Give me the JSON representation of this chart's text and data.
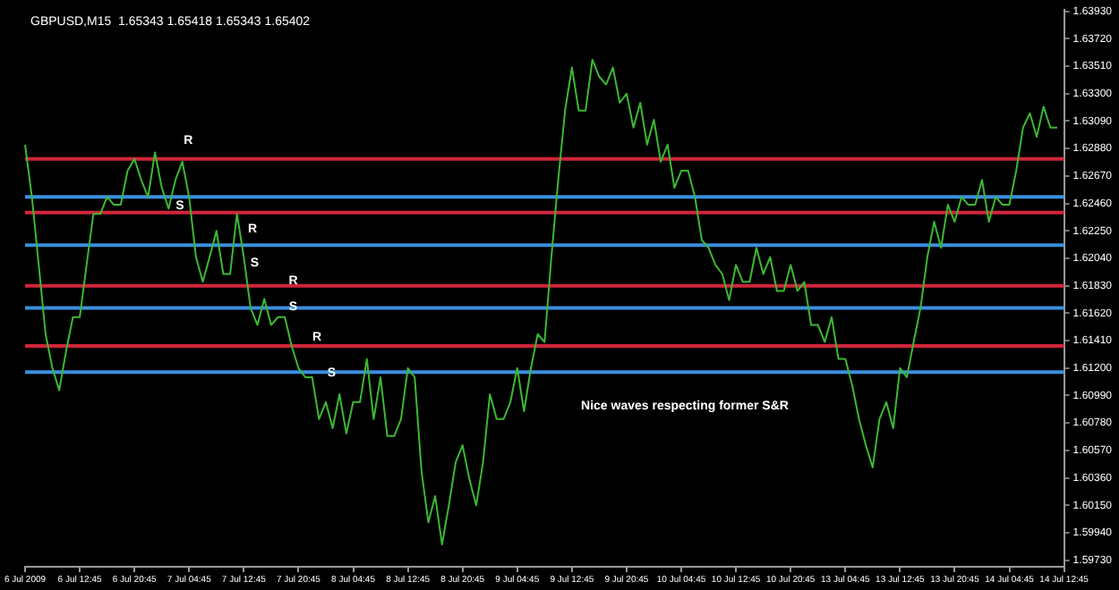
{
  "chart_data": {
    "type": "line",
    "title": "GBPUSD,M15  1.65343 1.65418 1.65343 1.65402",
    "grid": false,
    "legend": false,
    "marker": "none",
    "categories": [
      "6 Jul 2009",
      null,
      null,
      null,
      null,
      null,
      null,
      null,
      "6 Jul 12:45",
      null,
      null,
      null,
      null,
      null,
      null,
      null,
      "6 Jul 20:45",
      null,
      null,
      null,
      null,
      null,
      null,
      null,
      "7 Jul 04:45",
      null,
      null,
      null,
      null,
      null,
      null,
      null,
      "7 Jul 12:45",
      null,
      null,
      null,
      null,
      null,
      null,
      null,
      "7 Jul 20:45",
      null,
      null,
      null,
      null,
      null,
      null,
      null,
      "8 Jul 04:45",
      null,
      null,
      null,
      null,
      null,
      null,
      null,
      "8 Jul 12:45",
      null,
      null,
      null,
      null,
      null,
      null,
      null,
      "8 Jul 20:45",
      null,
      null,
      null,
      null,
      null,
      null,
      null,
      "9 Jul 04:45",
      null,
      null,
      null,
      null,
      null,
      null,
      null,
      "9 Jul 12:45",
      null,
      null,
      null,
      null,
      null,
      null,
      null,
      "9 Jul 20:45",
      null,
      null,
      null,
      null,
      null,
      null,
      null,
      "10 Jul 04:45",
      null,
      null,
      null,
      null,
      null,
      null,
      null,
      "10 Jul 12:45",
      null,
      null,
      null,
      null,
      null,
      null,
      null,
      "10 Jul 20:45",
      null,
      null,
      null,
      null,
      null,
      null,
      null,
      "13 Jul 04:45",
      null,
      null,
      null,
      null,
      null,
      null,
      null,
      "13 Jul 12:45",
      null,
      null,
      null,
      null,
      null,
      null,
      null,
      "13 Jul 20:45",
      null,
      null,
      null,
      null,
      null,
      null,
      null,
      "14 Jul 04:45",
      null,
      null,
      null,
      null,
      null,
      null,
      null,
      "14 Jul 12:45"
    ],
    "series": [
      {
        "color": "#3cb832",
        "values": [
          1.6291,
          1.6251,
          1.6199,
          1.6146,
          1.612,
          1.6103,
          1.6133,
          1.6159,
          1.6159,
          1.6199,
          1.6238,
          1.6238,
          1.6251,
          1.6245,
          1.6245,
          1.6271,
          1.628,
          1.6264,
          1.6251,
          1.6285,
          1.6258,
          1.6242,
          1.6264,
          1.6278,
          1.6251,
          1.6205,
          1.6186,
          1.6205,
          1.6225,
          1.6192,
          1.6192,
          1.6238,
          1.6205,
          1.6166,
          1.6153,
          1.6173,
          1.6153,
          1.6159,
          1.6159,
          1.6137,
          1.612,
          1.6113,
          1.6113,
          1.6081,
          1.6094,
          1.6074,
          1.61,
          1.607,
          1.6094,
          1.6094,
          1.6127,
          1.6081,
          1.6113,
          1.6068,
          1.6068,
          1.6081,
          1.612,
          1.6113,
          1.6041,
          1.6002,
          1.6022,
          1.5985,
          1.6015,
          1.6048,
          1.6061,
          1.6035,
          1.6015,
          1.6048,
          1.61,
          1.6081,
          1.6081,
          1.6094,
          1.612,
          1.6087,
          1.612,
          1.6146,
          1.614,
          1.6205,
          1.6264,
          1.6317,
          1.635,
          1.6317,
          1.6317,
          1.6356,
          1.6343,
          1.6337,
          1.635,
          1.6323,
          1.633,
          1.6304,
          1.6323,
          1.6291,
          1.631,
          1.6278,
          1.6291,
          1.6258,
          1.6271,
          1.6271,
          1.6251,
          1.6218,
          1.6212,
          1.6199,
          1.6192,
          1.6172,
          1.6199,
          1.6186,
          1.6186,
          1.6212,
          1.6192,
          1.6205,
          1.6179,
          1.6179,
          1.6199,
          1.6179,
          1.6186,
          1.6153,
          1.6153,
          1.614,
          1.6159,
          1.6127,
          1.6127,
          1.6107,
          1.6081,
          1.6061,
          1.6044,
          1.6081,
          1.6094,
          1.6074,
          1.612,
          1.6113,
          1.614,
          1.6166,
          1.6205,
          1.6232,
          1.6212,
          1.6245,
          1.6232,
          1.6251,
          1.6245,
          1.6245,
          1.6264,
          1.6232,
          1.6251,
          1.6245,
          1.6245,
          1.6271,
          1.6304,
          1.6315,
          1.6297,
          1.632,
          1.6304,
          1.6304,
          null
        ]
      }
    ],
    "ylim": [
      1.5968,
      1.6394
    ],
    "yticks": [
      {
        "value": 1.5973,
        "label": "1.59730"
      },
      {
        "value": 1.5994,
        "label": "1.59940"
      },
      {
        "value": 1.6015,
        "label": "1.60150"
      },
      {
        "value": 1.6036,
        "label": "1.60360"
      },
      {
        "value": 1.6057,
        "label": "1.60570"
      },
      {
        "value": 1.6078,
        "label": "1.60780"
      },
      {
        "value": 1.6099,
        "label": "1.60990"
      },
      {
        "value": 1.612,
        "label": "1.61200"
      },
      {
        "value": 1.6141,
        "label": "1.61410"
      },
      {
        "value": 1.6162,
        "label": "1.61620"
      },
      {
        "value": 1.6183,
        "label": "1.61830"
      },
      {
        "value": 1.6204,
        "label": "1.62040"
      },
      {
        "value": 1.6225,
        "label": "1.62250"
      },
      {
        "value": 1.6246,
        "label": "1.62460"
      },
      {
        "value": 1.6267,
        "label": "1.62670"
      },
      {
        "value": 1.6288,
        "label": "1.62880"
      },
      {
        "value": 1.6309,
        "label": "1.63090"
      },
      {
        "value": 1.633,
        "label": "1.63300"
      },
      {
        "value": 1.6351,
        "label": "1.63510"
      },
      {
        "value": 1.6372,
        "label": "1.63720"
      },
      {
        "value": 1.6393,
        "label": "1.63930"
      }
    ],
    "ref_lines": [
      {
        "axis": "y",
        "value": 1.628,
        "color": "#d0253a"
      },
      {
        "axis": "y",
        "value": 1.6251,
        "color": "#3a8fe0"
      },
      {
        "axis": "y",
        "value": 1.6239,
        "color": "#d0253a"
      },
      {
        "axis": "y",
        "value": 1.6214,
        "color": "#3a8fe0"
      },
      {
        "axis": "y",
        "value": 1.6183,
        "color": "#d0253a"
      },
      {
        "axis": "y",
        "value": 1.6166,
        "color": "#3a8fe0"
      },
      {
        "axis": "y",
        "value": 1.6137,
        "color": "#d0253a"
      },
      {
        "axis": "y",
        "value": 1.6117,
        "color": "#3a8fe0"
      }
    ],
    "annotations": [
      "R",
      "S",
      "R",
      "S",
      "R",
      "S",
      "R",
      "S",
      "Nice waves respecting former S&R"
    ]
  }
}
